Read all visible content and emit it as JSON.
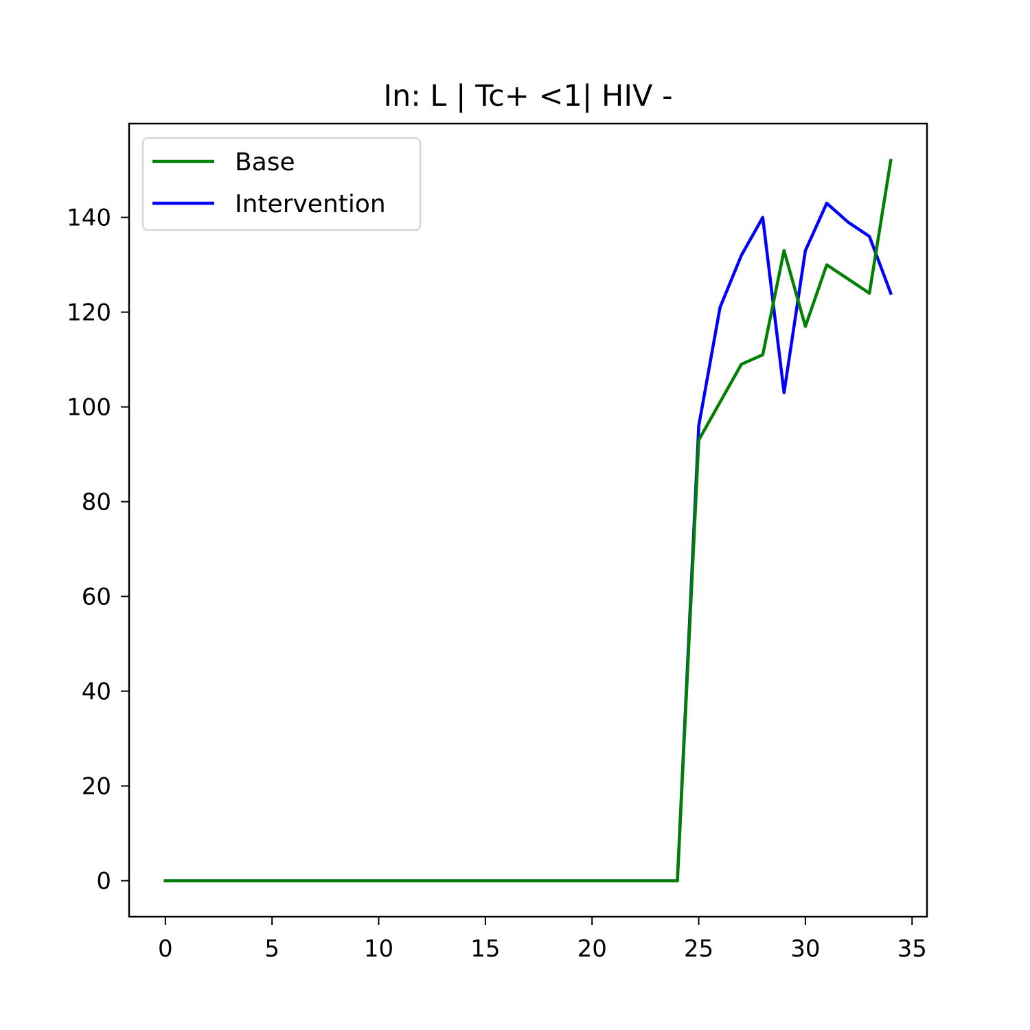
{
  "chart_data": {
    "type": "line",
    "title": "In: L | Tc+ <1| HIV -",
    "xlabel": "",
    "ylabel": "",
    "xlim": [
      -1.7,
      35.7
    ],
    "ylim": [
      -7.6,
      159.8
    ],
    "xticks": [
      0,
      5,
      10,
      15,
      20,
      25,
      30,
      35
    ],
    "yticks": [
      0,
      20,
      40,
      60,
      80,
      100,
      120,
      140
    ],
    "grid": false,
    "legend_position": "top-left",
    "x": [
      0,
      1,
      2,
      3,
      4,
      5,
      6,
      7,
      8,
      9,
      10,
      11,
      12,
      13,
      14,
      15,
      16,
      17,
      18,
      19,
      20,
      21,
      22,
      23,
      24,
      25,
      26,
      27,
      28,
      29,
      30,
      31,
      32,
      33,
      34
    ],
    "series": [
      {
        "name": "Base",
        "color": "#008000",
        "values": [
          0,
          0,
          0,
          0,
          0,
          0,
          0,
          0,
          0,
          0,
          0,
          0,
          0,
          0,
          0,
          0,
          0,
          0,
          0,
          0,
          0,
          0,
          0,
          0,
          0,
          93,
          101,
          109,
          111,
          133,
          117,
          130,
          127,
          124,
          152
        ]
      },
      {
        "name": "Intervention",
        "color": "#0000ff",
        "values": [
          0,
          0,
          0,
          0,
          0,
          0,
          0,
          0,
          0,
          0,
          0,
          0,
          0,
          0,
          0,
          0,
          0,
          0,
          0,
          0,
          0,
          0,
          0,
          0,
          0,
          96,
          121,
          132,
          140,
          103,
          133,
          143,
          139,
          136,
          124
        ]
      }
    ]
  }
}
